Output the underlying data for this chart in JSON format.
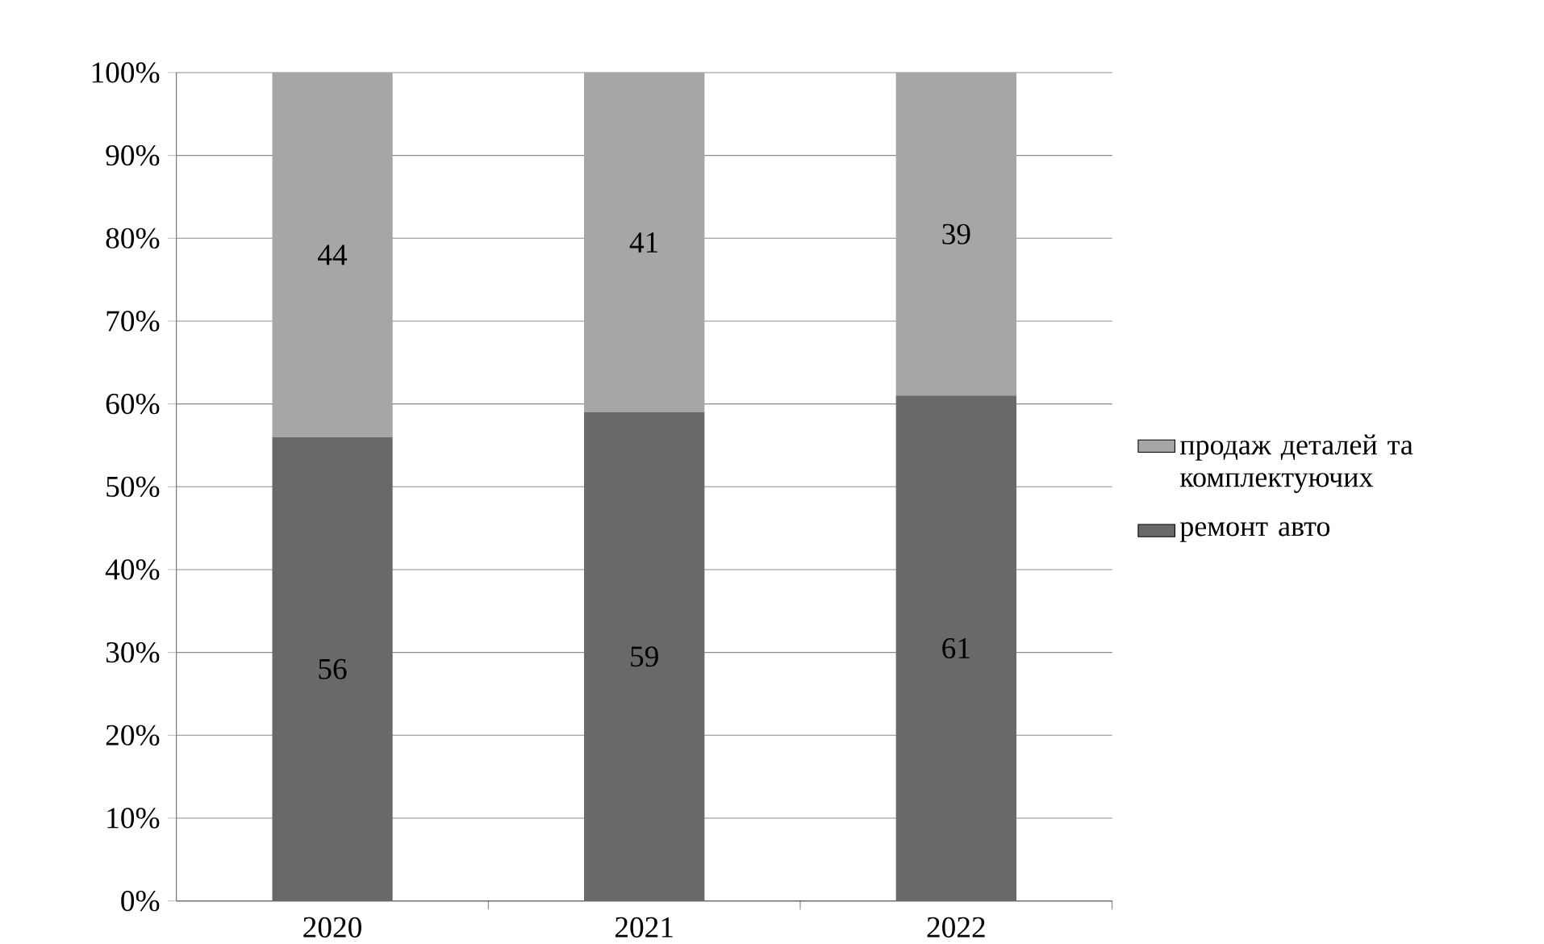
{
  "chart_data": {
    "type": "bar",
    "stacked": true,
    "categories": [
      "2020",
      "2021",
      "2022"
    ],
    "series": [
      {
        "name": "ремонт авто",
        "color": "#696969",
        "values": [
          56,
          59,
          61
        ]
      },
      {
        "name": "продаж деталей та комплектуючих",
        "color": "#a6a6a6",
        "values": [
          44,
          41,
          39
        ]
      }
    ],
    "ylim": [
      0,
      100
    ],
    "yticks": [
      {
        "value": 0,
        "label": "0%"
      },
      {
        "value": 10,
        "label": "10%"
      },
      {
        "value": 20,
        "label": "20%"
      },
      {
        "value": 30,
        "label": "30%"
      },
      {
        "value": 40,
        "label": "40%"
      },
      {
        "value": 50,
        "label": "50%"
      },
      {
        "value": 60,
        "label": "60%"
      },
      {
        "value": 70,
        "label": "70%"
      },
      {
        "value": 80,
        "label": "80%"
      },
      {
        "value": 90,
        "label": "90%"
      },
      {
        "value": 100,
        "label": "100%"
      }
    ],
    "grid": "y",
    "legend": "right",
    "data_labels": true
  }
}
